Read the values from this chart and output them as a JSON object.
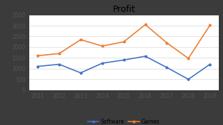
{
  "title": "Profit",
  "years": [
    2011,
    2012,
    2013,
    2014,
    2015,
    2016,
    2017,
    2018,
    2019
  ],
  "software": [
    1100,
    1200,
    800,
    1250,
    1400,
    1575,
    1050,
    500,
    1200
  ],
  "games": [
    1600,
    1700,
    2350,
    2050,
    2250,
    3050,
    2200,
    1475,
    3020
  ],
  "software_color": "#4472C4",
  "games_color": "#ED7D31",
  "ylim": [
    0,
    3500
  ],
  "yticks": [
    0,
    500,
    1000,
    1500,
    2000,
    2500,
    3000,
    3500
  ],
  "outer_bg_color": "#3B3B3B",
  "plot_bg_color": "#FFFFFF",
  "legend_labels": [
    "Software",
    "Games"
  ],
  "title_fontsize": 9,
  "tick_fontsize": 5.5,
  "legend_fontsize": 5.5,
  "line_width": 1.2,
  "marker": "o",
  "marker_size": 2.0,
  "grid_color": "#D8D8D8"
}
